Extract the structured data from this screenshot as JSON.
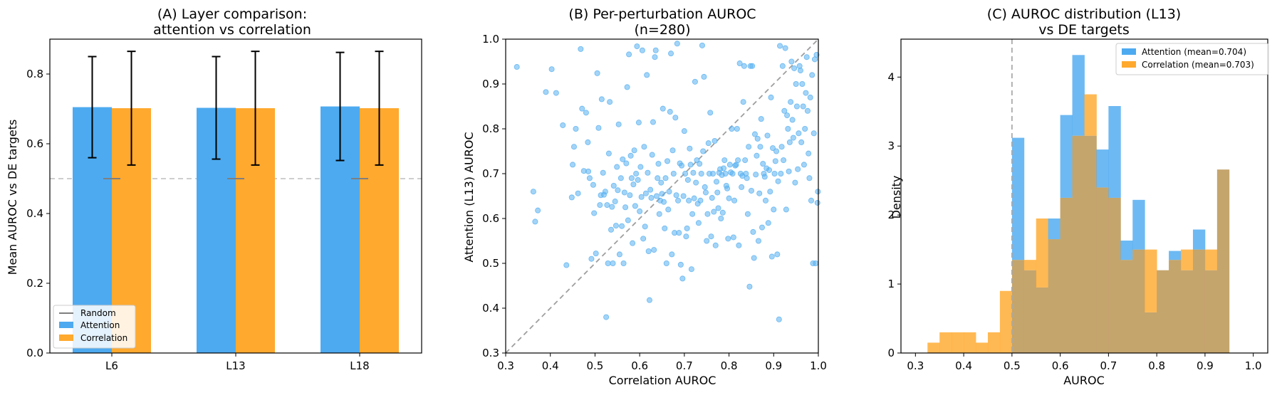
{
  "colors": {
    "attention": "#4daaf0",
    "correlation": "#ffa92e",
    "overlap": "#c4a56c",
    "scatter": "#58b0f0",
    "random": "#7f7f7f",
    "reference": "#bdbdbd"
  },
  "chart_data": [
    {
      "type": "bar",
      "title": "(A) Layer comparison:",
      "subtitle": "attention vs correlation",
      "xlabel": "",
      "ylabel": "Mean AUROC vs DE targets",
      "categories": [
        "L6",
        "L13",
        "L18"
      ],
      "series": [
        {
          "name": "Attention",
          "values": [
            0.705,
            0.703,
            0.707
          ],
          "err": [
            0.145,
            0.147,
            0.155
          ]
        },
        {
          "name": "Correlation",
          "values": [
            0.702,
            0.702,
            0.702
          ],
          "err": [
            0.163,
            0.163,
            0.163
          ]
        }
      ],
      "random_level": 0.5,
      "random_label": "Random",
      "ylim": [
        0,
        0.9
      ],
      "yticks": [
        "0.0",
        "0.2",
        "0.4",
        "0.6",
        "0.8"
      ],
      "legend": "lower-left",
      "grid": false
    },
    {
      "type": "scatter",
      "title": "(B) Per-perturbation AUROC",
      "subtitle": "(n=280)",
      "xlabel": "Correlation AUROC",
      "ylabel": "Attention (L13) AUROC",
      "xlim": [
        0.3,
        1.0
      ],
      "ylim": [
        0.3,
        1.0
      ],
      "xticks": [
        "0.3",
        "0.4",
        "0.5",
        "0.6",
        "0.7",
        "0.8",
        "0.9",
        "1.0"
      ],
      "yticks": [
        "0.3",
        "0.4",
        "0.5",
        "0.6",
        "0.7",
        "0.8",
        "0.9",
        "1.0"
      ],
      "diagonal": true,
      "grid": false,
      "points": [
        [
          0.325,
          0.938
        ],
        [
          0.362,
          0.66
        ],
        [
          0.366,
          0.593
        ],
        [
          0.372,
          0.618
        ],
        [
          0.39,
          0.882
        ],
        [
          0.403,
          0.933
        ],
        [
          0.413,
          0.88
        ],
        [
          0.428,
          0.808
        ],
        [
          0.436,
          0.496
        ],
        [
          0.448,
          0.647
        ],
        [
          0.45,
          0.72
        ],
        [
          0.453,
          0.76
        ],
        [
          0.457,
          0.8
        ],
        [
          0.462,
          0.656
        ],
        [
          0.468,
          0.978
        ],
        [
          0.471,
          0.845
        ],
        [
          0.475,
          0.706
        ],
        [
          0.48,
          0.836
        ],
        [
          0.484,
          0.77
        ],
        [
          0.485,
          0.705
        ],
        [
          0.488,
          0.69
        ],
        [
          0.492,
          0.51
        ],
        [
          0.496,
          0.675
        ],
        [
          0.498,
          0.612
        ],
        [
          0.502,
          0.522
        ],
        [
          0.505,
          0.924
        ],
        [
          0.508,
          0.802
        ],
        [
          0.511,
          0.63
        ],
        [
          0.513,
          0.652
        ],
        [
          0.515,
          0.866
        ],
        [
          0.518,
          0.702
        ],
        [
          0.52,
          0.653
        ],
        [
          0.523,
          0.66
        ],
        [
          0.525,
          0.38
        ],
        [
          0.527,
          0.63
        ],
        [
          0.529,
          0.5
        ],
        [
          0.531,
          0.745
        ],
        [
          0.533,
          0.86
        ],
        [
          0.536,
          0.575
        ],
        [
          0.538,
          0.626
        ],
        [
          0.54,
          0.5
        ],
        [
          0.542,
          0.673
        ],
        [
          0.545,
          0.638
        ],
        [
          0.547,
          0.584
        ],
        [
          0.549,
          0.715
        ],
        [
          0.551,
          0.663
        ],
        [
          0.553,
          0.81
        ],
        [
          0.555,
          0.52
        ],
        [
          0.558,
          0.69
        ],
        [
          0.56,
          0.583
        ],
        [
          0.562,
          0.732
        ],
        [
          0.564,
          0.5
        ],
        [
          0.566,
          0.658
        ],
        [
          0.568,
          0.625
        ],
        [
          0.57,
          0.723
        ],
        [
          0.572,
          0.893
        ],
        [
          0.574,
          0.596
        ],
        [
          0.576,
          0.966
        ],
        [
          0.578,
          0.652
        ],
        [
          0.58,
          0.74
        ],
        [
          0.582,
          0.69
        ],
        [
          0.584,
          0.545
        ],
        [
          0.586,
          0.676
        ],
        [
          0.588,
          0.752
        ],
        [
          0.59,
          0.628
        ],
        [
          0.592,
          0.7
        ],
        [
          0.594,
          0.984
        ],
        [
          0.596,
          0.686
        ],
        [
          0.598,
          0.814
        ],
        [
          0.6,
          0.616
        ],
        [
          0.602,
          0.715
        ],
        [
          0.604,
          0.648
        ],
        [
          0.606,
          0.975
        ],
        [
          0.608,
          0.555
        ],
        [
          0.61,
          0.76
        ],
        [
          0.612,
          0.582
        ],
        [
          0.614,
          0.656
        ],
        [
          0.616,
          0.92
        ],
        [
          0.618,
          0.702
        ],
        [
          0.62,
          0.527
        ],
        [
          0.622,
          0.418
        ],
        [
          0.624,
          0.664
        ],
        [
          0.626,
          0.646
        ],
        [
          0.628,
          0.742
        ],
        [
          0.63,
          0.815
        ],
        [
          0.632,
          0.53
        ],
        [
          0.634,
          0.96
        ],
        [
          0.636,
          0.975
        ],
        [
          0.638,
          0.65
        ],
        [
          0.64,
          0.69
        ],
        [
          0.642,
          0.722
        ],
        [
          0.644,
          0.61
        ],
        [
          0.646,
          0.64
        ],
        [
          0.648,
          0.68
        ],
        [
          0.65,
          0.655
        ],
        [
          0.652,
          0.845
        ],
        [
          0.654,
          0.637
        ],
        [
          0.656,
          0.578
        ],
        [
          0.658,
          0.69
        ],
        [
          0.66,
          0.5
        ],
        [
          0.662,
          0.728
        ],
        [
          0.664,
          0.62
        ],
        [
          0.666,
          0.66
        ],
        [
          0.668,
          0.838
        ],
        [
          0.67,
          0.968
        ],
        [
          0.672,
          0.52
        ],
        [
          0.674,
          0.752
        ],
        [
          0.676,
          0.7
        ],
        [
          0.678,
          0.568
        ],
        [
          0.68,
          0.825
        ],
        [
          0.682,
          0.652
        ],
        [
          0.684,
          0.99
        ],
        [
          0.686,
          0.64
        ],
        [
          0.688,
          0.568
        ],
        [
          0.69,
          0.723
        ],
        [
          0.692,
          0.497
        ],
        [
          0.694,
          0.718
        ],
        [
          0.696,
          0.466
        ],
        [
          0.698,
          0.65
        ],
        [
          0.7,
          0.795
        ],
        [
          0.702,
          0.7
        ],
        [
          0.704,
          0.56
        ],
        [
          0.706,
          0.578
        ],
        [
          0.708,
          0.686
        ],
        [
          0.71,
          0.64
        ],
        [
          0.712,
          0.756
        ],
        [
          0.714,
          0.72
        ],
        [
          0.716,
          0.487
        ],
        [
          0.718,
          0.61
        ],
        [
          0.72,
          0.702
        ],
        [
          0.722,
          0.645
        ],
        [
          0.724,
          0.905
        ],
        [
          0.726,
          0.68
        ],
        [
          0.728,
          0.73
        ],
        [
          0.73,
          0.633
        ],
        [
          0.732,
          0.59
        ],
        [
          0.734,
          0.722
        ],
        [
          0.736,
          0.64
        ],
        [
          0.738,
          0.7
        ],
        [
          0.74,
          0.986
        ],
        [
          0.742,
          0.75
        ],
        [
          0.744,
          0.916
        ],
        [
          0.746,
          0.67
        ],
        [
          0.748,
          0.658
        ],
        [
          0.75,
          0.55
        ],
        [
          0.752,
          0.61
        ],
        [
          0.754,
          0.768
        ],
        [
          0.756,
          0.7
        ],
        [
          0.758,
          0.836
        ],
        [
          0.76,
          0.56
        ],
        [
          0.762,
          0.646
        ],
        [
          0.764,
          0.7
        ],
        [
          0.766,
          0.615
        ],
        [
          0.768,
          0.773
        ],
        [
          0.77,
          0.54
        ],
        [
          0.772,
          0.682
        ],
        [
          0.774,
          0.658
        ],
        [
          0.776,
          0.623
        ],
        [
          0.778,
          0.702
        ],
        [
          0.78,
          0.71
        ],
        [
          0.782,
          0.6
        ],
        [
          0.784,
          0.697
        ],
        [
          0.786,
          0.613
        ],
        [
          0.788,
          0.712
        ],
        [
          0.79,
          0.73
        ],
        [
          0.792,
          0.7
        ],
        [
          0.794,
          0.673
        ],
        [
          0.796,
          0.667
        ],
        [
          0.798,
          0.555
        ],
        [
          0.8,
          0.645
        ],
        [
          0.802,
          0.72
        ],
        [
          0.804,
          0.703
        ],
        [
          0.806,
          0.8
        ],
        [
          0.808,
          0.7
        ],
        [
          0.81,
          0.558
        ],
        [
          0.812,
          0.64
        ],
        [
          0.814,
          0.718
        ],
        [
          0.816,
          0.72
        ],
        [
          0.818,
          0.8
        ],
        [
          0.82,
          0.73
        ],
        [
          0.822,
          0.54
        ],
        [
          0.824,
          0.946
        ],
        [
          0.826,
          0.7
        ],
        [
          0.828,
          0.67
        ],
        [
          0.83,
          0.695
        ],
        [
          0.832,
          0.86
        ],
        [
          0.834,
          0.94
        ],
        [
          0.836,
          0.73
        ],
        [
          0.838,
          0.7
        ],
        [
          0.84,
          0.69
        ],
        [
          0.842,
          0.61
        ],
        [
          0.844,
          0.76
        ],
        [
          0.846,
          0.448
        ],
        [
          0.848,
          0.94
        ],
        [
          0.85,
          0.662
        ],
        [
          0.852,
          0.94
        ],
        [
          0.854,
          0.57
        ],
        [
          0.856,
          0.512
        ],
        [
          0.858,
          0.788
        ],
        [
          0.86,
          0.698
        ],
        [
          0.862,
          0.74
        ],
        [
          0.864,
          0.778
        ],
        [
          0.866,
          0.55
        ],
        [
          0.868,
          0.656
        ],
        [
          0.87,
          0.76
        ],
        [
          0.872,
          0.822
        ],
        [
          0.874,
          0.58
        ],
        [
          0.876,
          0.722
        ],
        [
          0.878,
          0.7
        ],
        [
          0.88,
          0.693
        ],
        [
          0.882,
          0.64
        ],
        [
          0.884,
          0.712
        ],
        [
          0.886,
          0.785
        ],
        [
          0.888,
          0.59
        ],
        [
          0.89,
          0.708
        ],
        [
          0.892,
          0.66
        ],
        [
          0.894,
          0.87
        ],
        [
          0.896,
          0.515
        ],
        [
          0.898,
          0.757
        ],
        [
          0.9,
          0.62
        ],
        [
          0.902,
          0.7
        ],
        [
          0.904,
          0.728
        ],
        [
          0.906,
          0.75
        ],
        [
          0.908,
          0.52
        ],
        [
          0.91,
          0.683
        ],
        [
          0.912,
          0.375
        ],
        [
          0.914,
          0.985
        ],
        [
          0.916,
          0.7
        ],
        [
          0.918,
          0.76
        ],
        [
          0.92,
          0.94
        ],
        [
          0.922,
          0.73
        ],
        [
          0.924,
          0.84
        ],
        [
          0.926,
          0.98
        ],
        [
          0.928,
          0.62
        ],
        [
          0.93,
          0.83
        ],
        [
          0.932,
          0.8
        ],
        [
          0.934,
          0.705
        ],
        [
          0.936,
          0.77
        ],
        [
          0.938,
          0.86
        ],
        [
          0.94,
          0.95
        ],
        [
          0.942,
          0.82
        ],
        [
          0.944,
          0.78
        ],
        [
          0.946,
          0.935
        ],
        [
          0.948,
          0.68
        ],
        [
          0.95,
          0.9
        ],
        [
          0.952,
          0.85
        ],
        [
          0.954,
          0.71
        ],
        [
          0.956,
          0.79
        ],
        [
          0.958,
          0.94
        ],
        [
          0.96,
          0.93
        ],
        [
          0.962,
          0.77
        ],
        [
          0.964,
          0.9
        ],
        [
          0.966,
          0.85
        ],
        [
          0.968,
          0.72
        ],
        [
          0.97,
          0.8
        ],
        [
          0.972,
          0.88
        ],
        [
          0.974,
          0.96
        ],
        [
          0.976,
          0.84
        ],
        [
          0.978,
          0.745
        ],
        [
          0.98,
          0.69
        ],
        [
          0.982,
          0.87
        ],
        [
          0.984,
          0.64
        ],
        [
          0.986,
          0.92
        ],
        [
          0.988,
          0.5
        ],
        [
          0.99,
          0.79
        ],
        [
          0.992,
          0.955
        ],
        [
          0.994,
          0.5
        ],
        [
          0.996,
          0.965
        ],
        [
          0.998,
          0.635
        ],
        [
          0.999,
          0.66
        ]
      ]
    },
    {
      "type": "histogram",
      "title": "(C) AUROC distribution (L13)",
      "subtitle": "vs DE targets",
      "xlabel": "AUROC",
      "ylabel": "Density",
      "xlim": [
        0.27,
        1.03
      ],
      "ylim": [
        0,
        4.55
      ],
      "xticks": [
        "0.3",
        "0.4",
        "0.5",
        "0.6",
        "0.7",
        "0.8",
        "0.9",
        "1.0"
      ],
      "yticks": [
        "0",
        "1",
        "2",
        "3",
        "4"
      ],
      "bin_start": 0.325,
      "bin_width": 0.025,
      "reference_line": 0.5,
      "legend": "top-right",
      "grid": false,
      "series": [
        {
          "name": "Attention (mean=0.704)",
          "values": [
            0,
            0,
            0,
            0,
            0,
            0,
            0,
            3.12,
            1.2,
            0.95,
            1.95,
            3.45,
            4.32,
            3.15,
            2.95,
            3.58,
            1.63,
            2.22,
            0.59,
            1.2,
            1.48,
            1.2,
            1.79,
            1.2,
            2.66
          ]
        },
        {
          "name": "Correlation (mean=0.703)",
          "values": [
            0.15,
            0.3,
            0.3,
            0.3,
            0.15,
            0.3,
            0.9,
            1.35,
            1.35,
            1.95,
            1.65,
            2.25,
            3.15,
            3.75,
            2.4,
            2.25,
            1.35,
            1.5,
            1.5,
            1.2,
            1.35,
            1.5,
            1.5,
            1.5,
            2.66
          ]
        }
      ]
    }
  ]
}
